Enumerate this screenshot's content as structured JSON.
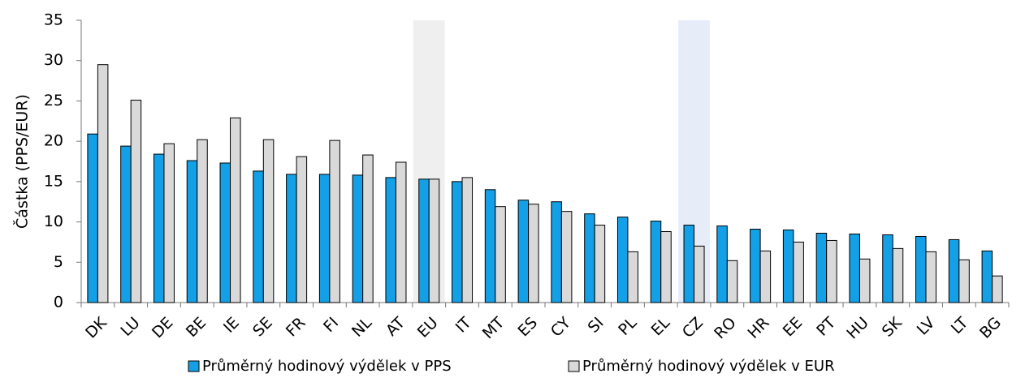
{
  "chart_data": {
    "type": "bar",
    "y_label": "Částka (PPS/EUR)",
    "categories": [
      "DK",
      "LU",
      "DE",
      "BE",
      "IE",
      "SE",
      "FR",
      "FI",
      "NL",
      "AT",
      "EU",
      "IT",
      "MT",
      "ES",
      "CY",
      "SI",
      "PL",
      "EL",
      "CZ",
      "RO",
      "HR",
      "EE",
      "PT",
      "HU",
      "SK",
      "LV",
      "LT",
      "BG"
    ],
    "series": [
      {
        "name": "Průměrný hodinový výdělek v PPS",
        "color": "#14a0e6",
        "values": [
          20.9,
          19.4,
          18.4,
          17.6,
          17.3,
          16.3,
          15.9,
          15.9,
          15.8,
          15.5,
          15.3,
          15.0,
          14.0,
          12.7,
          12.5,
          11.0,
          10.6,
          10.1,
          9.6,
          9.5,
          9.1,
          9.0,
          8.6,
          8.5,
          8.4,
          8.2,
          7.8,
          6.4
        ]
      },
      {
        "name": "Průměrný hodinový výdělek v EUR",
        "color": "#d9d9d9",
        "values": [
          29.5,
          25.1,
          19.7,
          20.2,
          22.9,
          20.2,
          18.1,
          20.1,
          18.3,
          17.4,
          15.3,
          15.5,
          11.9,
          12.2,
          11.3,
          9.6,
          6.3,
          8.8,
          7.0,
          5.2,
          6.4,
          7.5,
          7.7,
          5.4,
          6.7,
          6.3,
          5.3,
          3.3
        ]
      }
    ],
    "highlight": [
      null,
      null,
      null,
      null,
      null,
      null,
      null,
      null,
      null,
      null,
      "#efefef",
      null,
      null,
      null,
      null,
      null,
      null,
      null,
      "#e6ecf8",
      null,
      null,
      null,
      null,
      null,
      null,
      null,
      null,
      null
    ],
    "ylim": [
      0,
      35
    ],
    "yticks": [
      0,
      5,
      10,
      15,
      20,
      25,
      30,
      35
    ],
    "grid": false,
    "legend": "bottom"
  }
}
